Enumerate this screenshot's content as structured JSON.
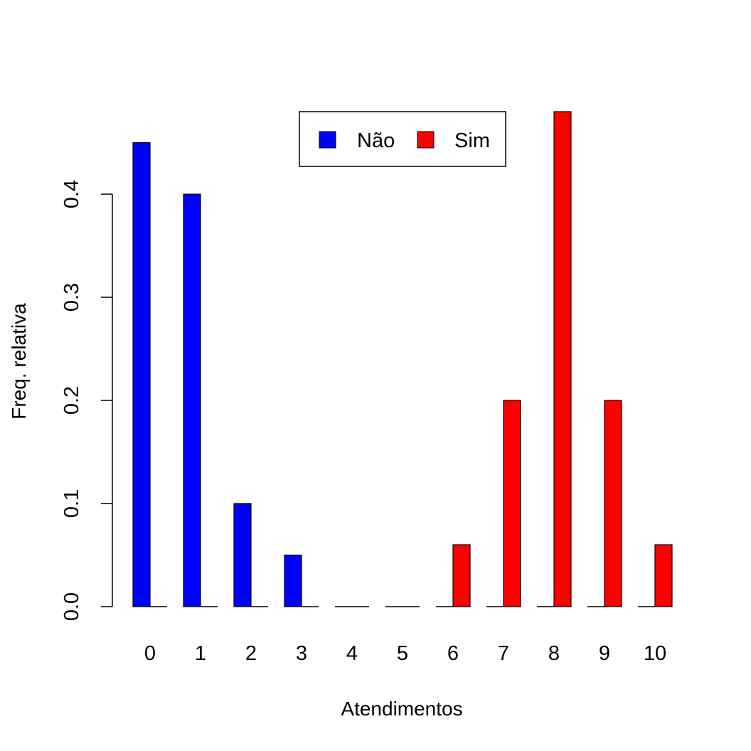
{
  "chart_data": {
    "type": "bar",
    "layout": "grouped",
    "xlabel": "Atendimentos",
    "ylabel": "Freq. relativa",
    "categories": [
      "0",
      "1",
      "2",
      "3",
      "4",
      "5",
      "6",
      "7",
      "8",
      "9",
      "10"
    ],
    "series": [
      {
        "name": "Não",
        "color": "#0000FF",
        "values": [
          0.45,
          0.4,
          0.1,
          0.05,
          0,
          0,
          0,
          0,
          0,
          0,
          0
        ]
      },
      {
        "name": "Sim",
        "color": "#FF0000",
        "values": [
          0,
          0,
          0,
          0,
          0,
          0,
          0.06,
          0.2,
          0.48,
          0.2,
          0.06
        ]
      }
    ],
    "ylim": [
      0,
      0.48
    ],
    "yticks": [
      0.0,
      0.1,
      0.2,
      0.3,
      0.4
    ],
    "ytick_labels": [
      "0.0",
      "0.1",
      "0.2",
      "0.3",
      "0.4"
    ],
    "grid": false,
    "legend_position": "top-center"
  }
}
